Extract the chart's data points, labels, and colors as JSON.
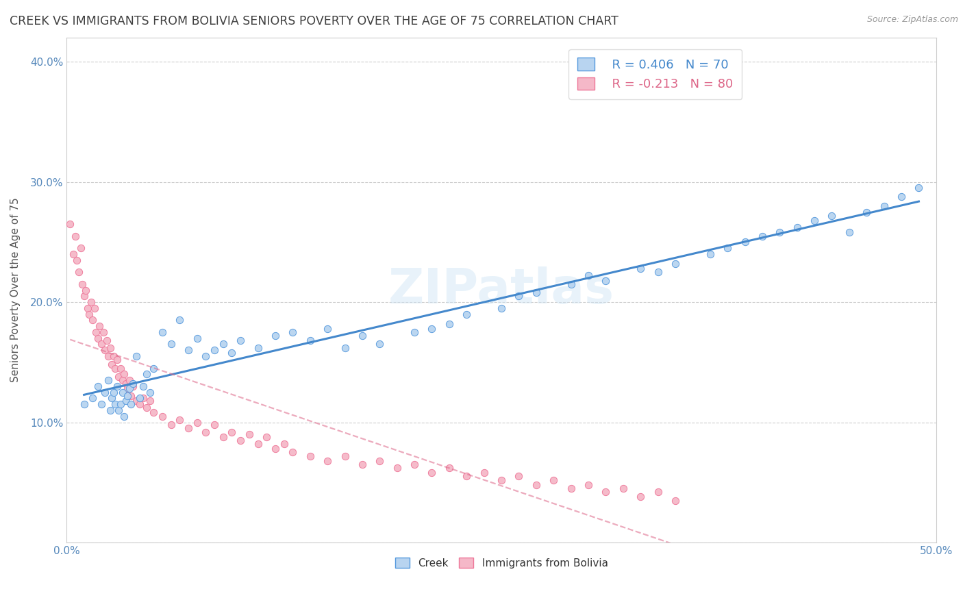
{
  "title": "CREEK VS IMMIGRANTS FROM BOLIVIA SENIORS POVERTY OVER THE AGE OF 75 CORRELATION CHART",
  "source": "Source: ZipAtlas.com",
  "ylabel": "Seniors Poverty Over the Age of 75",
  "xlim": [
    0.0,
    0.5
  ],
  "ylim": [
    0.0,
    0.42
  ],
  "xtick_positions": [
    0.0,
    0.1,
    0.2,
    0.3,
    0.4,
    0.5
  ],
  "xticklabels": [
    "0.0%",
    "",
    "",
    "",
    "",
    "50.0%"
  ],
  "ytick_positions": [
    0.0,
    0.1,
    0.2,
    0.3,
    0.4
  ],
  "yticklabels": [
    "",
    "10.0%",
    "20.0%",
    "30.0%",
    "40.0%"
  ],
  "legend_labels": [
    "Creek",
    "Immigrants from Bolivia"
  ],
  "legend_r_creek": "R = 0.406",
  "legend_n_creek": "N = 70",
  "legend_r_bolivia": "R = -0.213",
  "legend_n_bolivia": "N = 80",
  "creek_fill_color": "#b8d4f0",
  "creek_edge_color": "#5599dd",
  "bolivia_fill_color": "#f5b8c8",
  "bolivia_edge_color": "#ee7799",
  "creek_line_color": "#4488cc",
  "bolivia_line_color": "#dd6688",
  "watermark": "ZIPatlas",
  "grid_color": "#cccccc",
  "title_color": "#404040",
  "axis_label_color": "#555555",
  "tick_color": "#5588bb",
  "r_color_creek": "#4488cc",
  "r_color_bolivia": "#dd6688",
  "creek_x": [
    0.01,
    0.015,
    0.018,
    0.02,
    0.022,
    0.024,
    0.025,
    0.026,
    0.027,
    0.028,
    0.029,
    0.03,
    0.031,
    0.032,
    0.033,
    0.034,
    0.035,
    0.036,
    0.037,
    0.038,
    0.04,
    0.042,
    0.044,
    0.046,
    0.048,
    0.05,
    0.055,
    0.06,
    0.065,
    0.07,
    0.075,
    0.08,
    0.085,
    0.09,
    0.095,
    0.1,
    0.11,
    0.12,
    0.13,
    0.14,
    0.15,
    0.16,
    0.17,
    0.18,
    0.2,
    0.21,
    0.22,
    0.23,
    0.25,
    0.26,
    0.27,
    0.29,
    0.3,
    0.31,
    0.33,
    0.34,
    0.35,
    0.37,
    0.38,
    0.39,
    0.4,
    0.41,
    0.42,
    0.43,
    0.44,
    0.45,
    0.46,
    0.47,
    0.48,
    0.49
  ],
  "creek_y": [
    0.115,
    0.12,
    0.13,
    0.115,
    0.125,
    0.135,
    0.11,
    0.12,
    0.125,
    0.115,
    0.13,
    0.11,
    0.115,
    0.125,
    0.105,
    0.118,
    0.122,
    0.128,
    0.115,
    0.132,
    0.155,
    0.12,
    0.13,
    0.14,
    0.125,
    0.145,
    0.175,
    0.165,
    0.185,
    0.16,
    0.17,
    0.155,
    0.16,
    0.165,
    0.158,
    0.168,
    0.162,
    0.172,
    0.175,
    0.168,
    0.178,
    0.162,
    0.172,
    0.165,
    0.175,
    0.178,
    0.182,
    0.19,
    0.195,
    0.205,
    0.208,
    0.215,
    0.222,
    0.218,
    0.228,
    0.225,
    0.232,
    0.24,
    0.245,
    0.25,
    0.255,
    0.258,
    0.262,
    0.268,
    0.272,
    0.258,
    0.275,
    0.28,
    0.288,
    0.295
  ],
  "bolivia_x": [
    0.002,
    0.004,
    0.005,
    0.006,
    0.007,
    0.008,
    0.009,
    0.01,
    0.011,
    0.012,
    0.013,
    0.014,
    0.015,
    0.016,
    0.017,
    0.018,
    0.019,
    0.02,
    0.021,
    0.022,
    0.023,
    0.024,
    0.025,
    0.026,
    0.027,
    0.028,
    0.029,
    0.03,
    0.031,
    0.032,
    0.033,
    0.034,
    0.035,
    0.036,
    0.037,
    0.038,
    0.04,
    0.042,
    0.044,
    0.046,
    0.048,
    0.05,
    0.055,
    0.06,
    0.065,
    0.07,
    0.075,
    0.08,
    0.085,
    0.09,
    0.095,
    0.1,
    0.105,
    0.11,
    0.115,
    0.12,
    0.125,
    0.13,
    0.14,
    0.15,
    0.16,
    0.17,
    0.18,
    0.19,
    0.2,
    0.21,
    0.22,
    0.23,
    0.24,
    0.25,
    0.26,
    0.27,
    0.28,
    0.29,
    0.3,
    0.31,
    0.32,
    0.33,
    0.34,
    0.35
  ],
  "bolivia_y": [
    0.265,
    0.24,
    0.255,
    0.235,
    0.225,
    0.245,
    0.215,
    0.205,
    0.21,
    0.195,
    0.19,
    0.2,
    0.185,
    0.195,
    0.175,
    0.17,
    0.18,
    0.165,
    0.175,
    0.16,
    0.168,
    0.155,
    0.162,
    0.148,
    0.155,
    0.145,
    0.152,
    0.138,
    0.145,
    0.135,
    0.14,
    0.132,
    0.128,
    0.135,
    0.122,
    0.13,
    0.118,
    0.115,
    0.12,
    0.112,
    0.118,
    0.108,
    0.105,
    0.098,
    0.102,
    0.095,
    0.1,
    0.092,
    0.098,
    0.088,
    0.092,
    0.085,
    0.09,
    0.082,
    0.088,
    0.078,
    0.082,
    0.075,
    0.072,
    0.068,
    0.072,
    0.065,
    0.068,
    0.062,
    0.065,
    0.058,
    0.062,
    0.055,
    0.058,
    0.052,
    0.055,
    0.048,
    0.052,
    0.045,
    0.048,
    0.042,
    0.045,
    0.038,
    0.042,
    0.035
  ]
}
